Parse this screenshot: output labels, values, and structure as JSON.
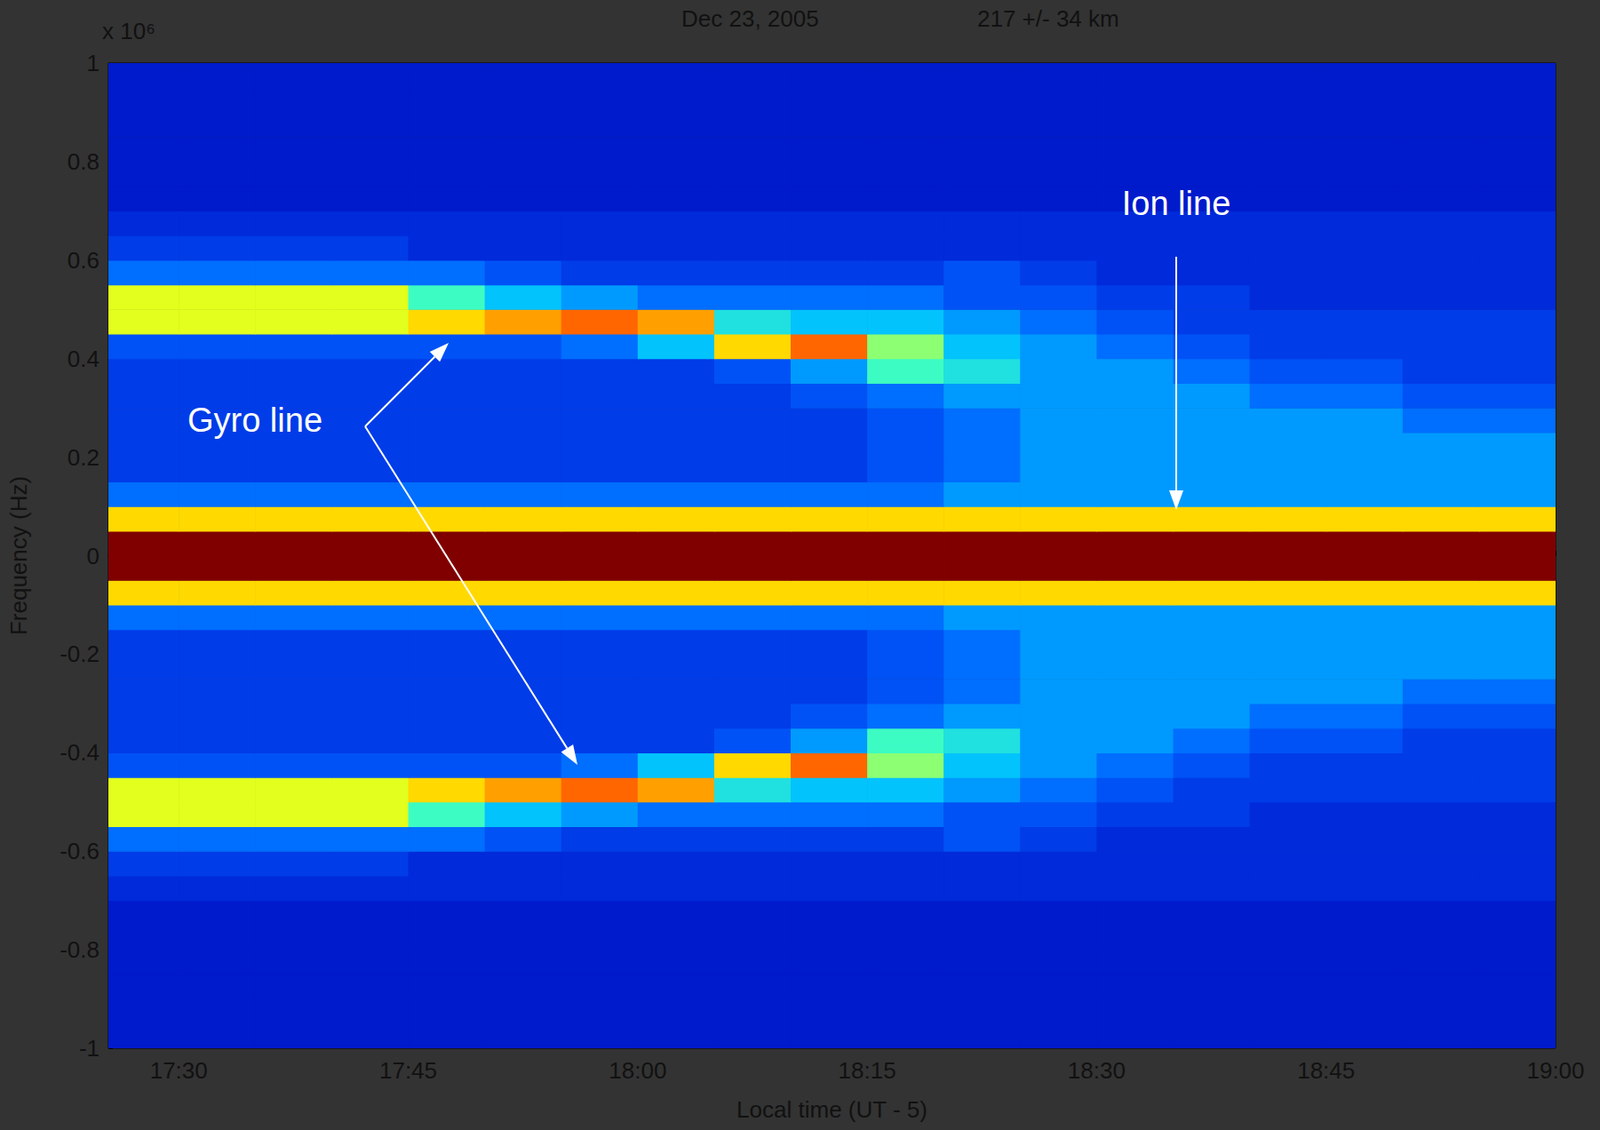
{
  "chart_data": {
    "type": "heatmap",
    "title": "Dec 23, 2005",
    "subtitle": "217 +/- 34 km",
    "x_label": "Local time (UT - 5)",
    "y_label": "Frequency (Hz)",
    "annotations": [
      "x 10⁶",
      "Gyro line",
      "Ion line"
    ],
    "xlim": [
      1045.4,
      1140
    ],
    "xticks": [
      {
        "value": 1050,
        "label": "17:30"
      },
      {
        "value": 1065,
        "label": "17:45"
      },
      {
        "value": 1080,
        "label": "18:00"
      },
      {
        "value": 1095,
        "label": "18:15"
      },
      {
        "value": 1110,
        "label": "18:30"
      },
      {
        "value": 1125,
        "label": "18:45"
      },
      {
        "value": 1140,
        "label": "19:00"
      }
    ],
    "ylim": [
      -1,
      1
    ],
    "yticks": [
      -1,
      -0.8,
      -0.6,
      -0.4,
      -0.2,
      0,
      0.2,
      0.4,
      0.6,
      0.8,
      1
    ],
    "grid": false,
    "color_range": [
      0,
      10
    ],
    "x_bins": [
      1045,
      1050,
      1055,
      1060,
      1065,
      1070,
      1075,
      1080,
      1085,
      1090,
      1095,
      1100,
      1105,
      1110,
      1115,
      1120,
      1125,
      1130,
      1135,
      1140
    ],
    "y_bins": [
      -1,
      -0.95,
      -0.9,
      -0.85,
      -0.8,
      -0.75,
      -0.7,
      -0.65,
      -0.6,
      -0.55,
      -0.5,
      -0.45,
      -0.4,
      -0.35,
      -0.3,
      -0.25,
      -0.2,
      -0.15,
      -0.1,
      -0.05,
      0,
      0.05,
      0.1,
      0.15,
      0.2,
      0.25,
      0.3,
      0.35,
      0.4,
      0.45,
      0.5,
      0.55,
      0.6,
      0.65,
      0.7,
      0.75,
      0.8,
      0.85,
      0.9,
      0.95,
      1
    ],
    "cells": [
      [
        1.5,
        1.5,
        1.5,
        1.5,
        1.5,
        1.5,
        1.5,
        1.5,
        1.5,
        1.5,
        1.5,
        1.5,
        1.5,
        1.5,
        1.5,
        1.5,
        1.5,
        1.5,
        1.5
      ],
      [
        1.5,
        1.5,
        1.5,
        1.5,
        1.5,
        1.5,
        1.5,
        1.5,
        1.5,
        1.5,
        1.5,
        1.5,
        1.5,
        1.5,
        1.5,
        1.5,
        1.5,
        1.5,
        1.5
      ],
      [
        1.5,
        1.5,
        1.5,
        1.5,
        1.5,
        1.5,
        1.5,
        1.5,
        1.5,
        1.5,
        1.5,
        1.5,
        1.5,
        1.5,
        1.5,
        1.5,
        1.5,
        1.5,
        1.5
      ],
      [
        1.5,
        1.5,
        1.5,
        1.5,
        1.5,
        1.5,
        1.5,
        1.5,
        1.5,
        1.5,
        1.5,
        1.5,
        1.5,
        1.5,
        1.5,
        1.5,
        1.5,
        1.5,
        1.5
      ],
      [
        1.5,
        1.5,
        1.5,
        1.5,
        1.5,
        1.5,
        1.5,
        1.5,
        1.5,
        1.5,
        1.5,
        1.5,
        1.5,
        1.5,
        1.5,
        1.5,
        1.5,
        1.5,
        1.5
      ],
      [
        1.5,
        1.5,
        1.5,
        1.5,
        1.5,
        1.5,
        1.5,
        1.5,
        1.5,
        1.5,
        1.5,
        1.5,
        1.5,
        1.5,
        1.5,
        1.5,
        1.5,
        1.5,
        1.5
      ],
      [
        2,
        2,
        2,
        2,
        2,
        2,
        2,
        2,
        2,
        2,
        2,
        2,
        2,
        2,
        2,
        2,
        2,
        2,
        2
      ],
      [
        2.5,
        2.5,
        2.5,
        2.5,
        2,
        2,
        2,
        2,
        2,
        2,
        2,
        2,
        2,
        2,
        2,
        2,
        2,
        2,
        2
      ],
      [
        3.5,
        3.5,
        3.5,
        3.5,
        3.5,
        3,
        2.5,
        2.5,
        2.5,
        2.5,
        2.5,
        3,
        2.5,
        2,
        2,
        2,
        2,
        2,
        2
      ],
      [
        6.5,
        6.5,
        6.5,
        6.5,
        5.5,
        4.5,
        4,
        3.5,
        3.5,
        3.5,
        3.5,
        3,
        3,
        2.5,
        2.5,
        2,
        2,
        2,
        2
      ],
      [
        6.5,
        6.5,
        6.5,
        6.5,
        7,
        7.5,
        8,
        7.5,
        5,
        4.5,
        4.5,
        4,
        3.5,
        3,
        2.5,
        2.5,
        2.5,
        2.5,
        2.5
      ],
      [
        3,
        3,
        3,
        3,
        3,
        3,
        3.5,
        4.5,
        7,
        8,
        6,
        4.5,
        4,
        3.5,
        3,
        2.5,
        2.5,
        2.5,
        2.5
      ],
      [
        2.5,
        2.5,
        2.5,
        2.5,
        2.5,
        2.5,
        2.5,
        2.5,
        3,
        4,
        5.5,
        5,
        4,
        4,
        3.5,
        3,
        3,
        2.5,
        2.5
      ],
      [
        2.5,
        2.5,
        2.5,
        2.5,
        2.5,
        2.5,
        2.5,
        2.5,
        2.5,
        3,
        3.5,
        4,
        4,
        4,
        4,
        3.5,
        3.5,
        3,
        3
      ],
      [
        2.5,
        2.5,
        2.5,
        2.5,
        2.5,
        2.5,
        2.5,
        2.5,
        2.5,
        2.5,
        3,
        3.5,
        4,
        4,
        4,
        4,
        4,
        3.5,
        3.5
      ],
      [
        2.5,
        2.5,
        2.5,
        2.5,
        2.5,
        2.5,
        2.5,
        2.5,
        2.5,
        2.5,
        3,
        3.5,
        4,
        4,
        4,
        4,
        4,
        4,
        4
      ],
      [
        2.5,
        2.5,
        2.5,
        2.5,
        2.5,
        2.5,
        2.5,
        2.5,
        2.5,
        2.5,
        3,
        3.5,
        4,
        4,
        4,
        4,
        4,
        4,
        4
      ],
      [
        3.5,
        3.5,
        3.5,
        3.5,
        3.5,
        3.5,
        3.5,
        3.5,
        3.5,
        3.5,
        3.5,
        4,
        4,
        4,
        4,
        4,
        4,
        4,
        4
      ],
      [
        7,
        7,
        7,
        7,
        7,
        7,
        7,
        7,
        7,
        7,
        7,
        7,
        7,
        7,
        7,
        7,
        7,
        7,
        7
      ],
      [
        10,
        10,
        10,
        10,
        10,
        10,
        10,
        10,
        10,
        10,
        10,
        10,
        10,
        10,
        10,
        10,
        10,
        10,
        10
      ],
      [
        10,
        10,
        10,
        10,
        10,
        10,
        10,
        10,
        10,
        10,
        10,
        10,
        10,
        10,
        10,
        10,
        10,
        10,
        10
      ],
      [
        7,
        7,
        7,
        7,
        7,
        7,
        7,
        7,
        7,
        7,
        7,
        7,
        7,
        7,
        7,
        7,
        7,
        7,
        7
      ],
      [
        3.5,
        3.5,
        3.5,
        3.5,
        3.5,
        3.5,
        3.5,
        3.5,
        3.5,
        3.5,
        3.5,
        4,
        4,
        4,
        4,
        4,
        4,
        4,
        4
      ],
      [
        2.5,
        2.5,
        2.5,
        2.5,
        2.5,
        2.5,
        2.5,
        2.5,
        2.5,
        2.5,
        3,
        3.5,
        4,
        4,
        4,
        4,
        4,
        4,
        4
      ],
      [
        2.5,
        2.5,
        2.5,
        2.5,
        2.5,
        2.5,
        2.5,
        2.5,
        2.5,
        2.5,
        3,
        3.5,
        4,
        4,
        4,
        4,
        4,
        4,
        4
      ],
      [
        2.5,
        2.5,
        2.5,
        2.5,
        2.5,
        2.5,
        2.5,
        2.5,
        2.5,
        2.5,
        3,
        3.5,
        4,
        4,
        4,
        4,
        4,
        3.5,
        3.5
      ],
      [
        2.5,
        2.5,
        2.5,
        2.5,
        2.5,
        2.5,
        2.5,
        2.5,
        2.5,
        3,
        3.5,
        4,
        4,
        4,
        4,
        3.5,
        3.5,
        3,
        3
      ],
      [
        2.5,
        2.5,
        2.5,
        2.5,
        2.5,
        2.5,
        2.5,
        2.5,
        3,
        4,
        5.5,
        5,
        4,
        4,
        3.5,
        3,
        3,
        2.5,
        2.5
      ],
      [
        3,
        3,
        3,
        3,
        3,
        3,
        3.5,
        4.5,
        7,
        8,
        6,
        4.5,
        4,
        3.5,
        3,
        2.5,
        2.5,
        2.5,
        2.5
      ],
      [
        6.5,
        6.5,
        6.5,
        6.5,
        7,
        7.5,
        8,
        7.5,
        5,
        4.5,
        4.5,
        4,
        3.5,
        3,
        2.5,
        2.5,
        2.5,
        2.5,
        2.5
      ],
      [
        6.5,
        6.5,
        6.5,
        6.5,
        5.5,
        4.5,
        4,
        3.5,
        3.5,
        3.5,
        3.5,
        3,
        3,
        2.5,
        2.5,
        2,
        2,
        2,
        2
      ],
      [
        3.5,
        3.5,
        3.5,
        3.5,
        3.5,
        3,
        2.5,
        2.5,
        2.5,
        2.5,
        2.5,
        3,
        2.5,
        2,
        2,
        2,
        2,
        2,
        2
      ],
      [
        2.5,
        2.5,
        2.5,
        2.5,
        2,
        2,
        2,
        2,
        2,
        2,
        2,
        2,
        2,
        2,
        2,
        2,
        2,
        2,
        2
      ],
      [
        2,
        2,
        2,
        2,
        2,
        2,
        2,
        2,
        2,
        2,
        2,
        2,
        2,
        2,
        2,
        2,
        2,
        2,
        2
      ],
      [
        1.5,
        1.5,
        1.5,
        1.5,
        1.5,
        1.5,
        1.5,
        1.5,
        1.5,
        1.5,
        1.5,
        1.5,
        1.5,
        1.5,
        1.5,
        1.5,
        1.5,
        1.5,
        1.5
      ],
      [
        1.5,
        1.5,
        1.5,
        1.5,
        1.5,
        1.5,
        1.5,
        1.5,
        1.5,
        1.5,
        1.5,
        1.5,
        1.5,
        1.5,
        1.5,
        1.5,
        1.5,
        1.5,
        1.5
      ],
      [
        1.5,
        1.5,
        1.5,
        1.5,
        1.5,
        1.5,
        1.5,
        1.5,
        1.5,
        1.5,
        1.5,
        1.5,
        1.5,
        1.5,
        1.5,
        1.5,
        1.5,
        1.5,
        1.5
      ],
      [
        1.5,
        1.5,
        1.5,
        1.5,
        1.5,
        1.5,
        1.5,
        1.5,
        1.5,
        1.5,
        1.5,
        1.5,
        1.5,
        1.5,
        1.5,
        1.5,
        1.5,
        1.5,
        1.5
      ],
      [
        1.5,
        1.5,
        1.5,
        1.5,
        1.5,
        1.5,
        1.5,
        1.5,
        1.5,
        1.5,
        1.5,
        1.5,
        1.5,
        1.5,
        1.5,
        1.5,
        1.5,
        1.5,
        1.5
      ],
      [
        1.5,
        1.5,
        1.5,
        1.5,
        1.5,
        1.5,
        1.5,
        1.5,
        1.5,
        1.5,
        1.5,
        1.5,
        1.5,
        1.5,
        1.5,
        1.5,
        1.5,
        1.5,
        1.5
      ]
    ]
  }
}
